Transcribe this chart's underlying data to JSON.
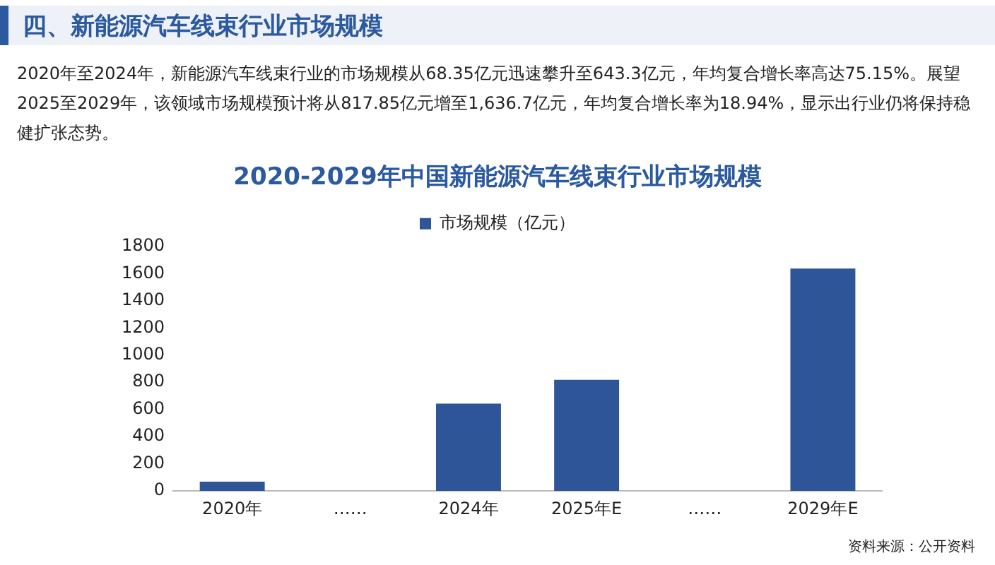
{
  "chart_data": {
    "type": "bar",
    "title": "2020-2029年中国新能源汽车线束行业市场规模",
    "annotations": [
      "四、新能源汽车线束行业市场规模",
      "2020年至2024年，新能源汽车线束行业的市场规模从68.35亿元迅速攀升至643.3亿元，年均复合增长率高达75.15%。展望2025至2029年，该领域市场规模预计将从817.85亿元增至1,636.7亿元，年均复合增长率为18.94%，显示出行业仍将保持稳健扩张态势。",
      "资料来源：公开资料"
    ],
    "categories": [
      "2020年",
      "……",
      "2024年",
      "2025年E",
      "……",
      "2029年E"
    ],
    "series": [
      {
        "name": "市场规模（亿元）",
        "color": "#2e5597",
        "values": [
          68.35,
          null,
          643.3,
          817.85,
          null,
          1636.7
        ]
      }
    ],
    "ylim": [
      0,
      1800
    ],
    "yticks": [
      0,
      200,
      400,
      600,
      800,
      1000,
      1200,
      1400,
      1600,
      1800
    ],
    "grid": false,
    "legend": "top"
  }
}
